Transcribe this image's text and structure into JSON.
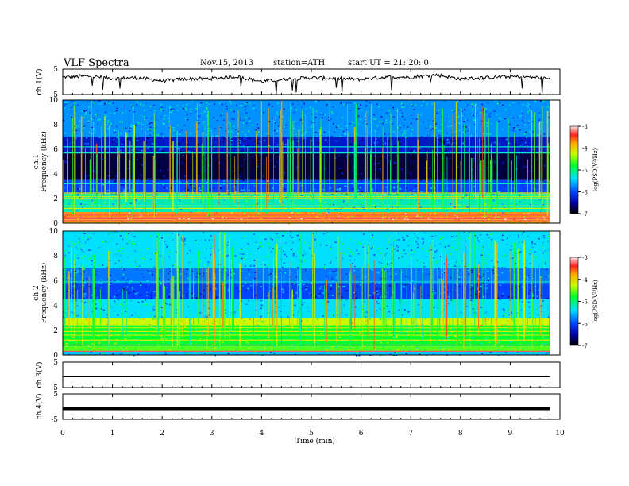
{
  "header": {
    "title": "VLF  Spectra",
    "date": "Nov.15, 2013",
    "station": "station=ATH",
    "start": "start  UT  =   21: 20: 0"
  },
  "chart_data": [
    {
      "type": "line",
      "ylabel": "ch.1(V)",
      "ylim": [
        -5,
        5
      ],
      "yticks": [
        "5",
        "-5"
      ],
      "xlim": [
        0,
        10
      ],
      "x": [
        0,
        0.5,
        1,
        1.5,
        2,
        2.5,
        3,
        3.5,
        4,
        4.5,
        5,
        5.5,
        6,
        6.5,
        7,
        7.5,
        8,
        8.5,
        9,
        9.5,
        9.8
      ],
      "values": [
        1.8,
        2.3,
        1.3,
        1.6,
        0.4,
        1.1,
        1.3,
        2.1,
        0.1,
        1.1,
        1.6,
        1.3,
        0.9,
        1.9,
        1.8,
        2.8,
        1.1,
        1.6,
        2.1,
        1.8,
        1.1
      ]
    },
    {
      "type": "heatmap",
      "ylabel": "ch.1\nFrequency  (kHz)",
      "ylim": [
        0,
        10
      ],
      "yticks": [
        "0",
        "2",
        "4",
        "6",
        "8",
        "10"
      ],
      "xlim": [
        0,
        10
      ],
      "data_extent_min": 9.8,
      "colorbar": {
        "label": "log(PSD(V²/Hz)",
        "range": [
          -7,
          -3
        ],
        "ticks": [
          "-3",
          "-4",
          "-5",
          "-6",
          "-7"
        ]
      },
      "bands_khz": [
        {
          "f": [
            0,
            0.3
          ],
          "level": -3.9
        },
        {
          "f": [
            0.3,
            0.5
          ],
          "level": -3.3
        },
        {
          "f": [
            0.5,
            0.9
          ],
          "level": -3.7
        },
        {
          "f": [
            0.9,
            2.4
          ],
          "level": -5.2
        },
        {
          "f": [
            2.4,
            3.5
          ],
          "level": -6.0
        },
        {
          "f": [
            3.5,
            5.8
          ],
          "level": -6.8
        },
        {
          "f": [
            5.8,
            7.0
          ],
          "level": -6.3
        },
        {
          "f": [
            7.0,
            10.0
          ],
          "level": -5.7
        }
      ],
      "lines_khz": [
        0.2,
        0.65,
        1.2,
        1.4,
        2.0,
        2.15,
        2.3,
        2.45,
        3.2,
        5.7,
        6.2
      ]
    },
    {
      "type": "heatmap",
      "ylabel": "ch.2\nFrequency  (kHz)",
      "ylim": [
        0,
        10
      ],
      "yticks": [
        "0",
        "2",
        "4",
        "6",
        "8",
        "10"
      ],
      "xlim": [
        0,
        10
      ],
      "data_extent_min": 9.8,
      "colorbar": {
        "label": "log(PSD(V²/Hz)",
        "range": [
          -7,
          -3
        ],
        "ticks": [
          "-3",
          "-4",
          "-5",
          "-6",
          "-7"
        ]
      },
      "bands_khz": [
        {
          "f": [
            0,
            0.3
          ],
          "level": -5.5
        },
        {
          "f": [
            0.3,
            0.7
          ],
          "level": -4.6
        },
        {
          "f": [
            0.7,
            2.4
          ],
          "level": -4.8
        },
        {
          "f": [
            2.4,
            3.0
          ],
          "level": -4.3
        },
        {
          "f": [
            3.0,
            4.5
          ],
          "level": -5.4
        },
        {
          "f": [
            4.5,
            5.8
          ],
          "level": -6.0
        },
        {
          "f": [
            5.8,
            7.0
          ],
          "level": -5.8
        },
        {
          "f": [
            7.0,
            10.0
          ],
          "level": -5.4
        }
      ],
      "lines_khz": [
        0.3,
        0.8,
        1.2,
        1.6,
        1.9,
        2.2,
        2.5,
        2.8,
        3.3,
        4.5,
        5.9
      ]
    },
    {
      "type": "line",
      "ylabel": "ch.3(V)",
      "ylim": [
        -5,
        5
      ],
      "yticks": [
        "5",
        "-5"
      ],
      "xlim": [
        0,
        10
      ],
      "x": [
        0,
        9.8
      ],
      "values": [
        -0.8,
        -0.8
      ]
    },
    {
      "type": "line",
      "ylabel": "ch.4(V)",
      "ylim": [
        -5,
        5
      ],
      "yticks": [
        "5",
        "-5"
      ],
      "xlim": [
        0,
        10
      ],
      "xlabel": "Time  (min)",
      "xticks": [
        "0",
        "1",
        "2",
        "3",
        "4",
        "5",
        "6",
        "7",
        "8",
        "9",
        "10"
      ],
      "x": [
        0,
        9.8
      ],
      "values": [
        -0.8,
        -0.8
      ]
    }
  ]
}
